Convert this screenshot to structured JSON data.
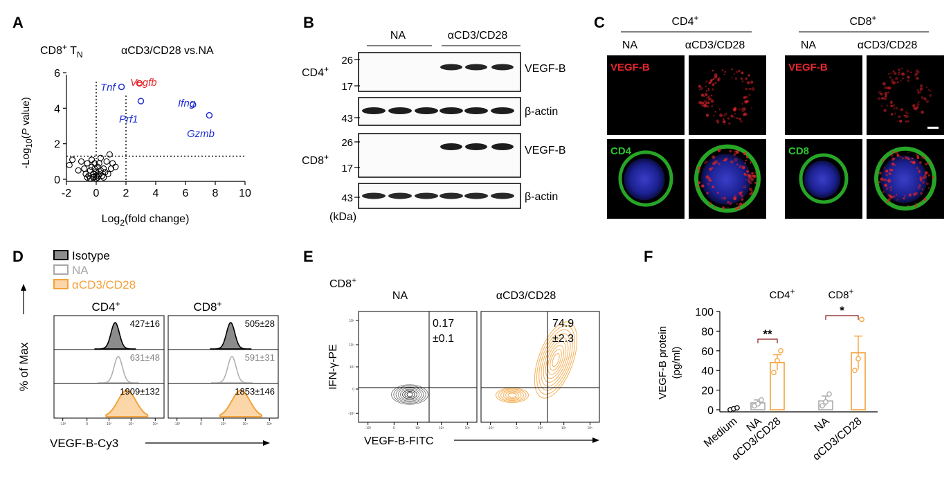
{
  "panels": [
    "A",
    "B",
    "C",
    "D",
    "E",
    "F"
  ],
  "colors": {
    "red": "#e8262c",
    "blue": "#1f2fd6",
    "orange": "#f4a23a",
    "gray": "#a8a8a8",
    "black": "#000000",
    "cd_green": "#2ec22e"
  },
  "panel_a": {
    "title_cell": "CD8",
    "title_sup": "+",
    "title_t": " T",
    "title_sub": "N",
    "comparison": "αCD3/CD28 vs.NA",
    "ylabel": {
      "a": "-Log",
      "sub": "10",
      "b": "(",
      "p": "P",
      "c": " value)"
    },
    "xlabel": {
      "a": "Log",
      "sub": "2",
      "b": "(fold change)"
    },
    "gene_labels": [
      "Tnf",
      "Vegfb",
      "Prf1",
      "Ifng",
      "Gzmb"
    ],
    "x_ticks": [
      "-2",
      "0",
      "2",
      "4",
      "6",
      "8",
      "10"
    ],
    "y_ticks": [
      "0",
      "2",
      "4",
      "6"
    ]
  },
  "panel_b": {
    "group_na": "NA",
    "group_stim": "αCD3/CD28",
    "row_cd4": "CD4",
    "row_cd8": "CD8",
    "sup": "+",
    "marker_vegfb": "VEGF-B",
    "marker_actin": "β-actin",
    "mw": [
      "26",
      "17",
      "43",
      "26",
      "17",
      "43"
    ],
    "unit": "(kDa)"
  },
  "panel_c": {
    "header_cd4": "CD4",
    "header_cd8": "CD8",
    "sup": "+",
    "col_na": "NA",
    "col_stim": "αCD3/CD28",
    "stain_vegfb": "VEGF-B",
    "stain_cd4": "CD4",
    "stain_cd8": "CD8"
  },
  "panel_d": {
    "legend": [
      "Isotype",
      "NA",
      "αCD3/CD28"
    ],
    "col_cd4": "CD4",
    "col_cd8": "CD8",
    "sup": "+",
    "cd4_mfi": [
      "427±16",
      "631±48",
      "1909±132"
    ],
    "cd8_mfi": [
      "505±28",
      "591±31",
      "1853±146"
    ],
    "ylabel": "% of Max",
    "xlabel": "VEGF-B-Cy3",
    "tick_labels": [
      "-10³",
      "0",
      "10³",
      "10⁴",
      "10⁵"
    ]
  },
  "panel_e": {
    "cell": "CD8",
    "sup": "+",
    "col_na": "NA",
    "col_stim": "αCD3/CD28",
    "na_pct": "0.17",
    "na_sd": "±0.1",
    "stim_pct": "74.9",
    "stim_sd": "±2.3",
    "ylabel": "IFN-γ-PE",
    "xlabel": "VEGF-B-FITC",
    "tick_labels": [
      "-10³",
      "0",
      "10³",
      "10⁴",
      "10⁵"
    ]
  },
  "panel_f": {
    "ylabel_1": "VEGF-B protein",
    "ylabel_2": "(pg/ml)",
    "group_cd4": "CD4",
    "group_cd8": "CD8",
    "sup": "+",
    "sig_cd4": "**",
    "sig_cd8": "*",
    "y_ticks": [
      "0",
      "20",
      "40",
      "60",
      "80",
      "100"
    ],
    "categories": [
      "Medium",
      "NA",
      "αCD3/CD28",
      "NA",
      "αCD3/CD28"
    ]
  },
  "chart_data": [
    {
      "type": "scatter",
      "panel": "A",
      "xlim": [
        -2,
        10
      ],
      "ylim": [
        0,
        6
      ],
      "thresholds": {
        "x": 2,
        "y": 1.3
      },
      "highlighted": [
        {
          "gene": "Tnf",
          "x": 1.7,
          "y": 5.2,
          "color": "#1f2fd6"
        },
        {
          "gene": "Vegfb",
          "x": 2.9,
          "y": 5.4,
          "color": "#e8262c"
        },
        {
          "gene": "Prf1",
          "x": 3.0,
          "y": 4.4,
          "color": "#1f2fd6"
        },
        {
          "gene": "Ifng",
          "x": 6.5,
          "y": 4.2,
          "color": "#1f2fd6"
        },
        {
          "gene": "Gzmb",
          "x": 7.6,
          "y": 3.6,
          "color": "#1f2fd6"
        }
      ],
      "points": [
        [
          -1.8,
          0.8
        ],
        [
          -1.6,
          1.1
        ],
        [
          -1.2,
          0.5
        ],
        [
          -1.0,
          1.0
        ],
        [
          -0.8,
          0.6
        ],
        [
          -0.7,
          0.3
        ],
        [
          -0.6,
          0.9
        ],
        [
          -0.5,
          0.2
        ],
        [
          -0.4,
          0.5
        ],
        [
          -0.3,
          1.1
        ],
        [
          -0.3,
          0.7
        ],
        [
          -0.2,
          0.3
        ],
        [
          -0.2,
          0.1
        ],
        [
          -0.1,
          0.6
        ],
        [
          -0.1,
          0.9
        ],
        [
          0.0,
          0.2
        ],
        [
          0.0,
          0.4
        ],
        [
          0.1,
          0.7
        ],
        [
          0.1,
          0.1
        ],
        [
          0.2,
          0.3
        ],
        [
          0.2,
          0.9
        ],
        [
          0.3,
          0.5
        ],
        [
          0.3,
          1.2
        ],
        [
          0.4,
          0.2
        ],
        [
          0.5,
          0.6
        ],
        [
          0.6,
          0.4
        ],
        [
          0.7,
          1.0
        ],
        [
          0.8,
          0.3
        ],
        [
          0.9,
          1.4
        ],
        [
          1.0,
          0.6
        ],
        [
          1.1,
          0.9
        ],
        [
          1.3,
          0.7
        ],
        [
          -0.4,
          0.05
        ],
        [
          0.0,
          0.05
        ],
        [
          -0.15,
          0.15
        ],
        [
          0.15,
          0.2
        ],
        [
          -0.6,
          0.1
        ],
        [
          0.5,
          0.1
        ]
      ]
    },
    {
      "type": "bar",
      "panel": "F",
      "categories": [
        "Medium",
        "NA",
        "αCD3/CD28",
        "NA",
        "αCD3/CD28"
      ],
      "groups": [
        "",
        "CD4+",
        "CD4+",
        "CD8+",
        "CD8+"
      ],
      "values": [
        1,
        7,
        48,
        9,
        58
      ],
      "sem": [
        0.5,
        3,
        8,
        5,
        17
      ],
      "points": [
        [
          0,
          1,
          2
        ],
        [
          4,
          6,
          10
        ],
        [
          38,
          50,
          60
        ],
        [
          4,
          8,
          16
        ],
        [
          40,
          52,
          92
        ]
      ],
      "ylim": [
        0,
        100
      ],
      "ylabel": "VEGF-B protein (pg/ml)",
      "significance": [
        {
          "between": [
            1,
            2
          ],
          "label": "**"
        },
        {
          "between": [
            3,
            4
          ],
          "label": "*"
        }
      ]
    },
    {
      "type": "histogram",
      "panel": "D",
      "series": [
        {
          "name": "Isotype",
          "cd4_mfi": 427,
          "cd8_mfi": 505
        },
        {
          "name": "NA",
          "cd4_mfi": 631,
          "cd8_mfi": 591
        },
        {
          "name": "αCD3/CD28",
          "cd4_mfi": 1909,
          "cd8_mfi": 1853
        }
      ]
    },
    {
      "type": "scatter",
      "panel": "E",
      "quadrant_upper_right_pct": {
        "NA": 0.17,
        "αCD3/CD28": 74.9
      }
    }
  ]
}
